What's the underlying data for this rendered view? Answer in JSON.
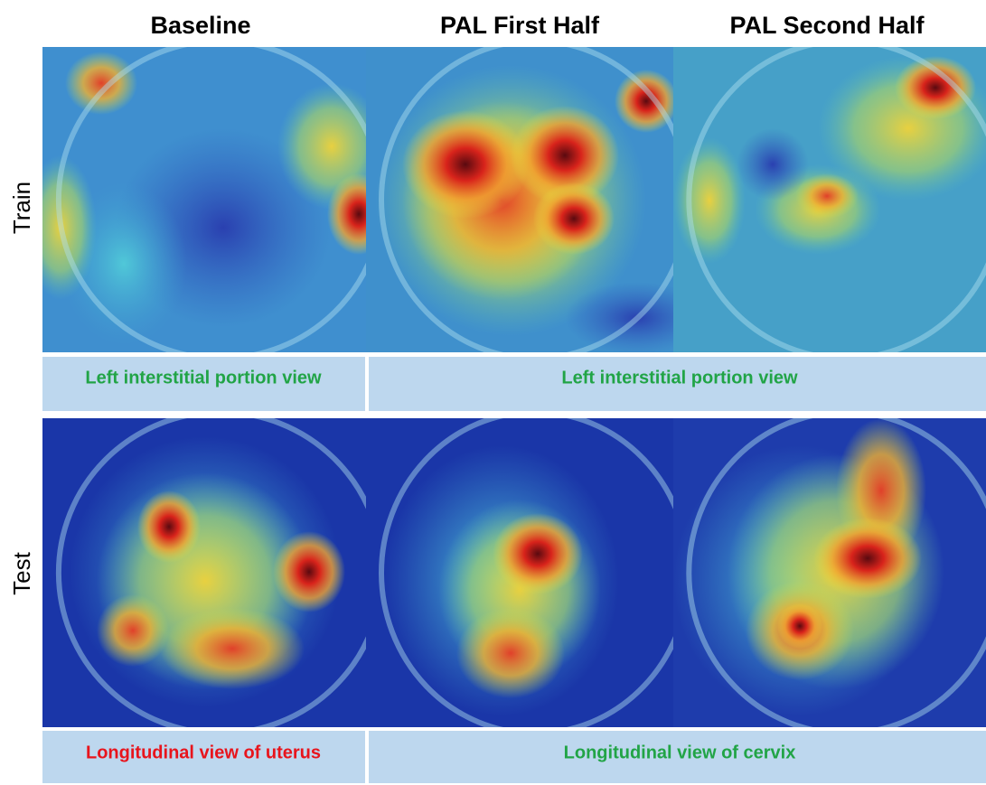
{
  "headers": [
    "Baseline",
    "PAL First Half",
    "PAL Second Half"
  ],
  "rows": [
    {
      "label": "Train",
      "captions": [
        "Left interstitial portion view",
        "Left interstitial portion view"
      ]
    },
    {
      "label": "Test",
      "captions": [
        "Longitudinal view of uterus",
        "Longitudinal view of cervix"
      ]
    }
  ]
}
